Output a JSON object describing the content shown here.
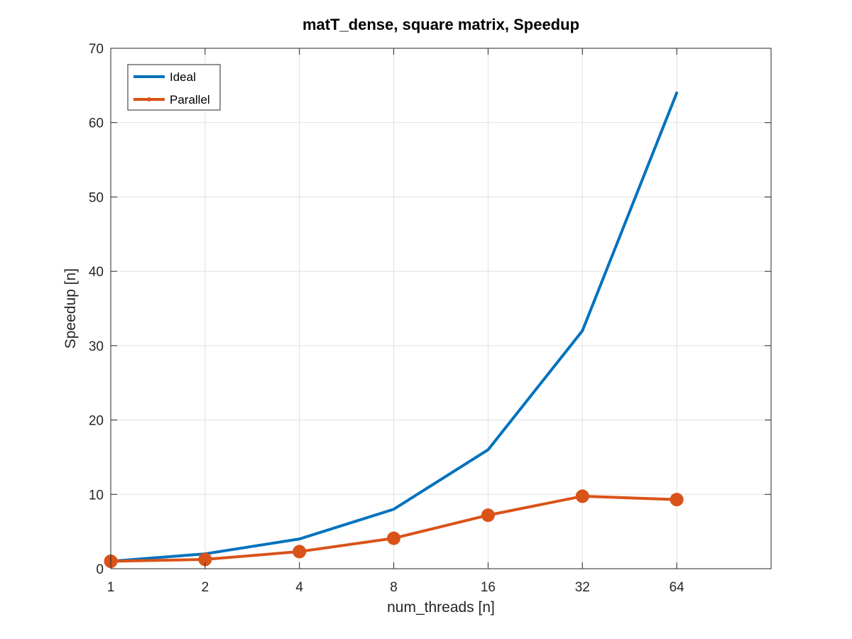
{
  "chart_data": {
    "type": "line",
    "title": "matT_dense, square matrix, Speedup",
    "xlabel": "num_threads [n]",
    "ylabel": "Speedup [n]",
    "x_scale": "log2",
    "x_ticks": [
      1,
      2,
      4,
      8,
      16,
      32,
      64
    ],
    "xlim": [
      1,
      128
    ],
    "y_ticks": [
      0,
      10,
      20,
      30,
      40,
      50,
      60,
      70
    ],
    "ylim": [
      0,
      70
    ],
    "grid": true,
    "legend_position": "top-left",
    "series": [
      {
        "name": "Ideal",
        "color": "#0072BD",
        "marker": "none",
        "x": [
          1,
          2,
          4,
          8,
          16,
          32,
          64
        ],
        "y": [
          1,
          2,
          4,
          8,
          16,
          32,
          64
        ]
      },
      {
        "name": "Parallel",
        "color": "#D95319",
        "marker": "circle",
        "x": [
          1,
          2,
          4,
          8,
          16,
          32,
          64
        ],
        "y": [
          1.0,
          1.25,
          2.3,
          4.1,
          7.2,
          9.75,
          9.3
        ]
      }
    ]
  }
}
